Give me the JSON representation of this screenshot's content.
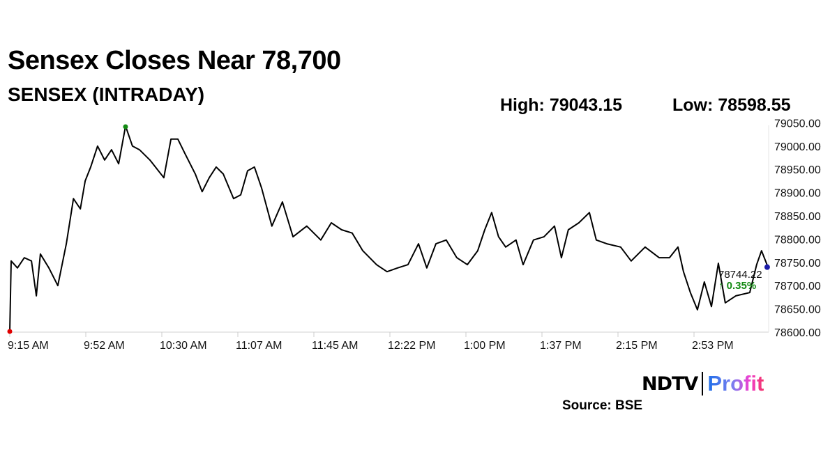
{
  "chart_data": {
    "type": "line",
    "title": "Sensex Closes Near 78,700",
    "subtitle": "SENSEX (INTRADAY)",
    "high_label": "High: 79043.15",
    "low_label": "Low: 78598.55",
    "last_value_label": "78744.22",
    "change_label": "↑ 0.35%",
    "x_unit": "minutes since 9:15 AM",
    "xlim": [
      0,
      375
    ],
    "ylim": [
      78600,
      79050
    ],
    "x_ticks": [
      0,
      37.5,
      75,
      112.5,
      150,
      187.5,
      225,
      262.5,
      300,
      337.5
    ],
    "x_tick_labels": [
      "9:15 AM",
      "9:52 AM",
      "10:30 AM",
      "11:07 AM",
      "11:45 AM",
      "12:22 PM",
      "1:00 PM",
      "1:37 PM",
      "2:15 PM",
      "2:53 PM"
    ],
    "y_ticks": [
      78600,
      78650,
      78700,
      78750,
      78800,
      78850,
      78900,
      78950,
      79000,
      79050
    ],
    "y_tick_labels": [
      "78600.00",
      "78650.00",
      "78700.00",
      "78750.00",
      "78800.00",
      "78850.00",
      "78900.00",
      "78950.00",
      "79000.00",
      "79050.00"
    ],
    "series": [
      {
        "name": "SENSEX",
        "color": "#000000",
        "points": [
          [
            0,
            78600
          ],
          [
            0.7,
            78753
          ],
          [
            3.8,
            78738
          ],
          [
            7.2,
            78760
          ],
          [
            10.7,
            78753
          ],
          [
            13.1,
            78678
          ],
          [
            15.1,
            78768
          ],
          [
            19.3,
            78738
          ],
          [
            23.7,
            78700
          ],
          [
            27.9,
            78790
          ],
          [
            31.4,
            78887
          ],
          [
            34.8,
            78865
          ],
          [
            37.2,
            78925
          ],
          [
            39.9,
            78955
          ],
          [
            43.3,
            79000
          ],
          [
            46.8,
            78970
          ],
          [
            50.2,
            78992
          ],
          [
            53.7,
            78962
          ],
          [
            57.1,
            79043
          ],
          [
            60.5,
            79000
          ],
          [
            64,
            78992
          ],
          [
            69.1,
            78970
          ],
          [
            76,
            78932
          ],
          [
            79.5,
            79015
          ],
          [
            82.9,
            79015
          ],
          [
            86.3,
            78985
          ],
          [
            91.5,
            78940
          ],
          [
            94.9,
            78902
          ],
          [
            98.4,
            78932
          ],
          [
            101.8,
            78955
          ],
          [
            105.3,
            78940
          ],
          [
            110.4,
            78887
          ],
          [
            113.9,
            78895
          ],
          [
            117.3,
            78947
          ],
          [
            120.7,
            78955
          ],
          [
            124.2,
            78910
          ],
          [
            129.3,
            78828
          ],
          [
            134.5,
            78880
          ],
          [
            139.7,
            78805
          ],
          [
            146.5,
            78828
          ],
          [
            153.4,
            78798
          ],
          [
            158.6,
            78835
          ],
          [
            163.7,
            78820
          ],
          [
            168.9,
            78813
          ],
          [
            174.1,
            78775
          ],
          [
            180.9,
            78745
          ],
          [
            186.1,
            78730
          ],
          [
            191.3,
            78738
          ],
          [
            196.4,
            78745
          ],
          [
            201.6,
            78790
          ],
          [
            205.7,
            78738
          ],
          [
            210.2,
            78790
          ],
          [
            215.3,
            78798
          ],
          [
            220.5,
            78760
          ],
          [
            225.7,
            78745
          ],
          [
            230.8,
            78775
          ],
          [
            234.3,
            78820
          ],
          [
            237.7,
            78857
          ],
          [
            241.1,
            78805
          ],
          [
            244.6,
            78783
          ],
          [
            249.7,
            78798
          ],
          [
            253.2,
            78745
          ],
          [
            258.3,
            78798
          ],
          [
            263.5,
            78805
          ],
          [
            268.7,
            78828
          ],
          [
            272.1,
            78760
          ],
          [
            275.5,
            78820
          ],
          [
            280.7,
            78835
          ],
          [
            285.9,
            78857
          ],
          [
            289.3,
            78798
          ],
          [
            294.5,
            78790
          ],
          [
            301.3,
            78783
          ],
          [
            306.5,
            78753
          ],
          [
            313.4,
            78783
          ],
          [
            320.3,
            78760
          ],
          [
            325.4,
            78760
          ],
          [
            329.6,
            78783
          ],
          [
            332.3,
            78730
          ],
          [
            335.7,
            78685
          ],
          [
            339.2,
            78648
          ],
          [
            342.6,
            78708
          ],
          [
            346.1,
            78655
          ],
          [
            349.5,
            78748
          ],
          [
            352.9,
            78663
          ],
          [
            358.1,
            78678
          ],
          [
            365,
            78685
          ],
          [
            368.4,
            78745
          ],
          [
            370.8,
            78775
          ],
          [
            373.6,
            78744
          ]
        ]
      }
    ],
    "markers": {
      "low": {
        "t": 0,
        "v": 78598.55,
        "color": "#e00000"
      },
      "high": {
        "t": 57.1,
        "v": 79043.15,
        "color": "#138a13"
      },
      "last": {
        "t": 373.6,
        "v": 78744.22,
        "color": "#1a1aa8"
      }
    },
    "change_color": "#138a13",
    "grid": false
  },
  "branding": {
    "ndtv": "NDTV",
    "profit": "Profit"
  },
  "source": "Source: BSE"
}
